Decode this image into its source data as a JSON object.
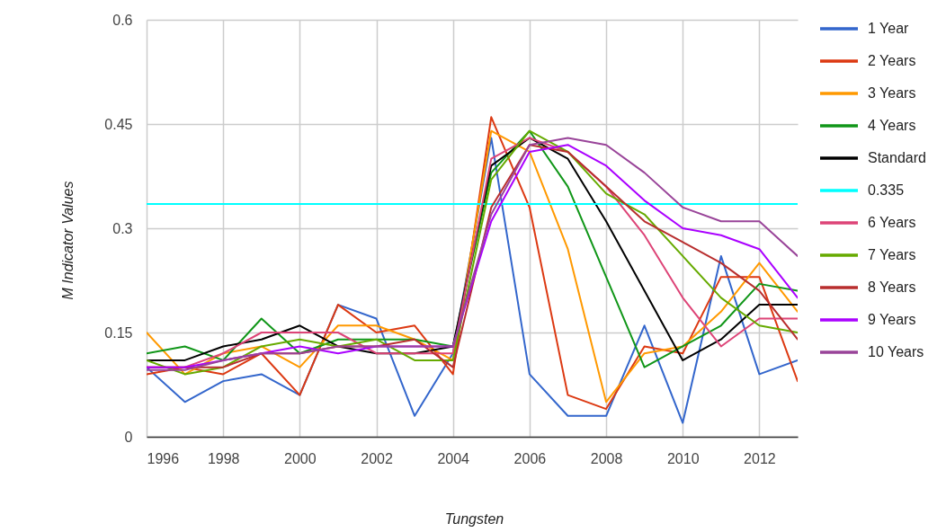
{
  "chart_data": {
    "type": "line",
    "xlabel": "Tungsten",
    "ylabel": "M Indicator Values",
    "x": [
      1996,
      1997,
      1998,
      1999,
      2000,
      2001,
      2002,
      2003,
      2004,
      2005,
      2006,
      2007,
      2008,
      2009,
      2010,
      2011,
      2012,
      2013
    ],
    "xlim": [
      1996,
      2013
    ],
    "xticks": [
      1996,
      1998,
      2000,
      2002,
      2004,
      2006,
      2008,
      2010,
      2012
    ],
    "ylim": [
      0,
      0.6
    ],
    "yticks": [
      0,
      0.15,
      0.3,
      0.45,
      0.6
    ],
    "grid": true,
    "legend": "right",
    "series": [
      {
        "name": "1 Year",
        "color": "#3366cc",
        "values": [
          0.1,
          0.05,
          0.08,
          0.09,
          0.06,
          0.19,
          0.17,
          0.03,
          0.12,
          0.43,
          0.09,
          0.03,
          0.03,
          0.16,
          0.02,
          0.26,
          0.09,
          0.11
        ]
      },
      {
        "name": "2 Years",
        "color": "#dc3912",
        "values": [
          0.09,
          0.1,
          0.09,
          0.12,
          0.06,
          0.19,
          0.15,
          0.16,
          0.09,
          0.46,
          0.33,
          0.06,
          0.04,
          0.13,
          0.12,
          0.23,
          0.23,
          0.08
        ]
      },
      {
        "name": "3 Years",
        "color": "#ff9900",
        "values": [
          0.15,
          0.09,
          0.12,
          0.13,
          0.1,
          0.16,
          0.16,
          0.14,
          0.11,
          0.44,
          0.41,
          0.27,
          0.05,
          0.12,
          0.13,
          0.18,
          0.25,
          0.18
        ]
      },
      {
        "name": "4 Years",
        "color": "#109618",
        "values": [
          0.12,
          0.13,
          0.11,
          0.17,
          0.12,
          0.14,
          0.14,
          0.14,
          0.13,
          0.38,
          0.44,
          0.36,
          0.23,
          0.1,
          0.13,
          0.16,
          0.22,
          0.21
        ]
      },
      {
        "name": "Standard",
        "color": "#000000",
        "values": [
          0.11,
          0.11,
          0.13,
          0.14,
          0.16,
          0.13,
          0.12,
          0.12,
          0.13,
          0.39,
          0.43,
          0.4,
          0.31,
          0.21,
          0.11,
          0.14,
          0.19,
          0.19
        ]
      },
      {
        "name": "0.335",
        "color": "#00ffff",
        "values": [
          0.335,
          0.335,
          0.335,
          0.335,
          0.335,
          0.335,
          0.335,
          0.335,
          0.335,
          0.335,
          0.335,
          0.335,
          0.335,
          0.335,
          0.335,
          0.335,
          0.335,
          0.335
        ]
      },
      {
        "name": "6 Years",
        "color": "#dd4477",
        "values": [
          0.1,
          0.1,
          0.12,
          0.15,
          0.15,
          0.15,
          0.12,
          0.12,
          0.12,
          0.4,
          0.43,
          0.41,
          0.36,
          0.29,
          0.2,
          0.13,
          0.17,
          0.17
        ]
      },
      {
        "name": "7 Years",
        "color": "#66aa00",
        "values": [
          0.11,
          0.09,
          0.1,
          0.13,
          0.14,
          0.13,
          0.14,
          0.11,
          0.11,
          0.37,
          0.44,
          0.41,
          0.35,
          0.32,
          0.26,
          0.2,
          0.16,
          0.15
        ]
      },
      {
        "name": "8 Years",
        "color": "#b82e2e",
        "values": [
          0.1,
          0.1,
          0.1,
          0.12,
          0.12,
          0.13,
          0.13,
          0.14,
          0.1,
          0.33,
          0.42,
          0.41,
          0.36,
          0.31,
          0.28,
          0.25,
          0.21,
          0.14
        ]
      },
      {
        "name": "9 Years",
        "color": "#aa00ff",
        "values": [
          0.1,
          0.1,
          0.11,
          0.12,
          0.13,
          0.12,
          0.13,
          0.13,
          0.13,
          0.31,
          0.41,
          0.42,
          0.39,
          0.34,
          0.3,
          0.29,
          0.27,
          0.2
        ]
      },
      {
        "name": "10 Years",
        "color": "#994499",
        "values": [
          0.096,
          0.096,
          0.11,
          0.12,
          0.12,
          0.13,
          0.13,
          0.13,
          0.13,
          0.32,
          0.42,
          0.43,
          0.42,
          0.38,
          0.33,
          0.31,
          0.31,
          0.26
        ]
      }
    ]
  }
}
